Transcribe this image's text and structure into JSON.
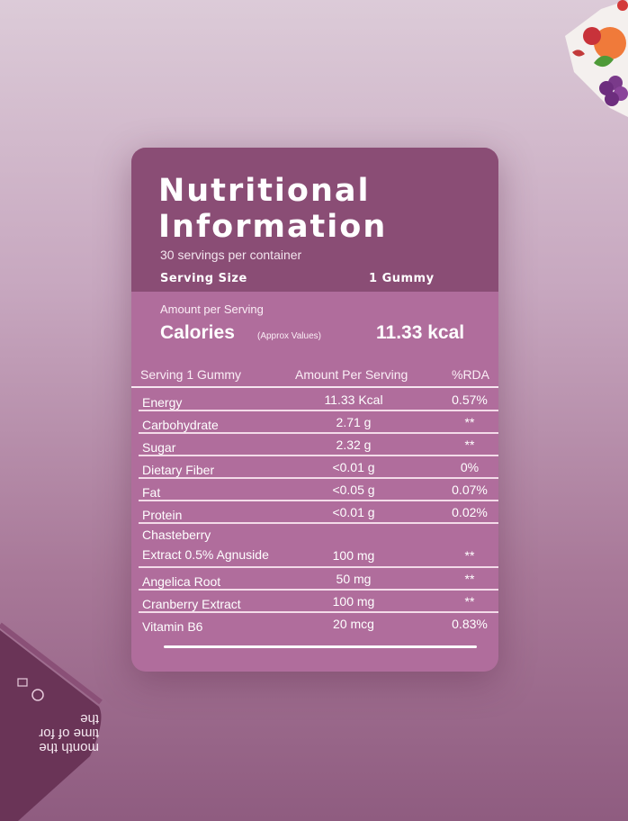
{
  "title_lines": [
    "Nutritional",
    "Information"
  ],
  "servings_per_container": "30 servings per container",
  "serving_size": {
    "label": "Serving Size",
    "value": "1 Gummy"
  },
  "amount_per_serving": "Amount per Serving",
  "calories": {
    "label": "Calories",
    "note": "(Approx Values)",
    "value": "11.33 kcal"
  },
  "table": {
    "headers": [
      "Serving 1 Gummy",
      "Amount Per Serving",
      "%RDA"
    ],
    "rows": [
      {
        "name": "Energy",
        "amount": "11.33 Kcal",
        "rda": "0.57%"
      },
      {
        "name": "Carbohydrate",
        "amount": "2.71 g",
        "rda": "**"
      },
      {
        "name": "Sugar",
        "amount": "2.32 g",
        "rda": "**"
      },
      {
        "name": "Dietary Fiber",
        "amount": "<0.01 g",
        "rda": "0%"
      },
      {
        "name": "Fat",
        "amount": "<0.05 g",
        "rda": "0.07%"
      },
      {
        "name": "Protein",
        "amount": "<0.01 g",
        "rda": "0.02%"
      },
      {
        "name_line1": "Chasteberry",
        "name_line2": "Extract 0.5% Agnuside",
        "amount": "100 mg",
        "rda": "**"
      },
      {
        "name": "Angelica Root",
        "amount": "50 mg",
        "rda": "**"
      },
      {
        "name": "Cranberry Extract",
        "amount": "100 mg",
        "rda": "**"
      },
      {
        "name": "Vitamin B6",
        "amount": "20 mcg",
        "rda": "0.83%"
      }
    ]
  },
  "pouch_text": "month the time of for the",
  "colors": {
    "header_bg": "#8a4d75",
    "card_bg": "#b06d9c",
    "text": "#ffffff"
  },
  "icons": {
    "fruit": "fruit-illustration",
    "pouch": "product-pouch"
  }
}
